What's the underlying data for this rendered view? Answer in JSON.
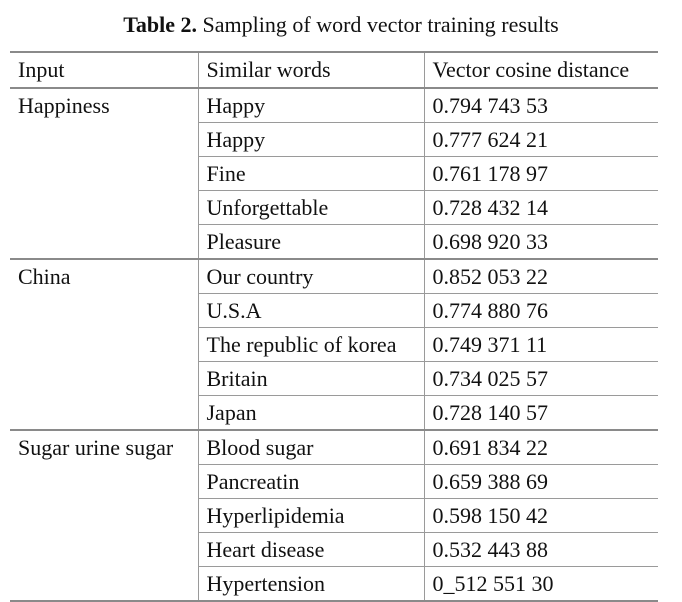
{
  "caption": {
    "label": "Table 2.",
    "text": "Sampling of word vector training results"
  },
  "table": {
    "headers": [
      "Input",
      "Similar words",
      "Vector cosine distance"
    ],
    "groups": [
      {
        "input": "Happiness",
        "rows": [
          {
            "word": "Happy",
            "distance": "0.794 743 53"
          },
          {
            "word": "Happy",
            "distance": "0.777 624 21"
          },
          {
            "word": "Fine",
            "distance": "0.761 178 97"
          },
          {
            "word": "Unforgettable",
            "distance": "0.728 432 14"
          },
          {
            "word": "Pleasure",
            "distance": "0.698 920 33"
          }
        ]
      },
      {
        "input": "China",
        "rows": [
          {
            "word": "Our country",
            "distance": "0.852 053 22"
          },
          {
            "word": "U.S.A",
            "distance": "0.774 880 76"
          },
          {
            "word": "The republic of korea",
            "distance": "0.749 371 11"
          },
          {
            "word": "Britain",
            "distance": "0.734 025 57"
          },
          {
            "word": "Japan",
            "distance": "0.728 140 57"
          }
        ]
      },
      {
        "input": "Sugar urine sugar",
        "rows": [
          {
            "word": "Blood sugar",
            "distance": "0.691 834 22"
          },
          {
            "word": "Pancreatin",
            "distance": "0.659 388 69"
          },
          {
            "word": "Hyperlipidemia",
            "distance": "0.598 150 42"
          },
          {
            "word": "Heart disease",
            "distance": "0.532 443 88"
          },
          {
            "word": "Hypertension",
            "distance": "0_512 551 30"
          }
        ]
      }
    ]
  }
}
